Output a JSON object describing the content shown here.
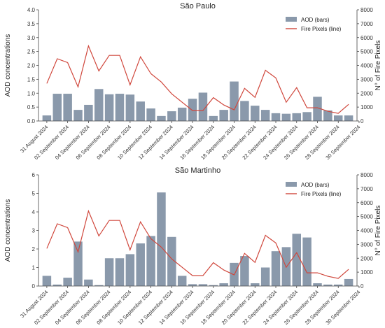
{
  "chart_data": [
    {
      "type": "bar",
      "title": "São Paulo",
      "ylabel": "AOD concentrations",
      "ylabel_right": "N° of Fire Pixels",
      "ylim": [
        0,
        4.0
      ],
      "ylim_right": [
        0,
        8000
      ],
      "yticks": [
        "0.0",
        "0.5",
        "1.0",
        "1.5",
        "2.0",
        "2.5",
        "3.0",
        "3.5",
        "4.0"
      ],
      "yticks_right": [
        "0",
        "1000",
        "2000",
        "3000",
        "4000",
        "5000",
        "6000",
        "7000",
        "8000"
      ],
      "legend": {
        "bars": "AOD (bars)",
        "line": "Fire Pixels (line)",
        "position": "top-right"
      },
      "x": [
        "31 August 2024",
        "02 September 2024",
        "04 September 2024",
        "06 September 2024",
        "08 September 2024",
        "10 September 2024",
        "12 September 2024",
        "14 September 2024",
        "16 September 2024",
        "18 September 2024",
        "20 September 2024",
        "22 September 2024",
        "24 September 2024",
        "26 September 2024",
        "28 September 2024",
        "30 September 2024"
      ],
      "aod": [
        0.2,
        0.98,
        0.98,
        0.4,
        0.58,
        1.15,
        0.96,
        0.98,
        0.95,
        0.7,
        0.45,
        0.18,
        0.35,
        0.48,
        0.8,
        1.02,
        0.18,
        0.4,
        1.42,
        0.72,
        0.55,
        0.4,
        0.28,
        0.26,
        0.28,
        0.32,
        0.87,
        0.38,
        0.2,
        0.2
      ],
      "fire": [
        2700,
        4480,
        4200,
        2450,
        5400,
        3600,
        4720,
        4720,
        2600,
        4620,
        3400,
        2800,
        1950,
        1350,
        750,
        750,
        1680,
        1150,
        800,
        2350,
        1700,
        3650,
        3100,
        1350,
        2400,
        950,
        950,
        700,
        550,
        1200
      ]
    },
    {
      "type": "bar",
      "title": "São Martinho",
      "ylabel": "AOD concentrations",
      "ylabel_right": "N° of Fire Pixels",
      "ylim": [
        0,
        6
      ],
      "ylim_right": [
        0,
        8000
      ],
      "yticks": [
        "0",
        "1",
        "2",
        "3",
        "4",
        "5",
        "6"
      ],
      "yticks_right": [
        "0",
        "1000",
        "2000",
        "3000",
        "4000",
        "5000",
        "6000",
        "7000",
        "8000"
      ],
      "legend": {
        "bars": "AOD (bars)",
        "line": "Fire Pixels (line)",
        "position": "top-right"
      },
      "x": [
        "31 August 2024",
        "02 September 2024",
        "04 September 2024",
        "06 September 2024",
        "08 September 2024",
        "10 September 2024",
        "12 September 2024",
        "14 September 2024",
        "16 September 2024",
        "18 September 2024",
        "20 September 2024",
        "22 September 2024",
        "24 September 2024",
        "26 September 2024",
        "28 September 2024",
        "30 September 2024"
      ],
      "aod": [
        0.55,
        0.08,
        0.45,
        2.4,
        0.35,
        0.05,
        1.5,
        1.5,
        1.72,
        2.3,
        2.7,
        5.05,
        2.65,
        0.55,
        0.1,
        0.1,
        0.05,
        0.15,
        1.25,
        1.62,
        0.15,
        1.0,
        1.88,
        2.1,
        2.82,
        2.62,
        0.15,
        0.08,
        0.08,
        0.38
      ],
      "fire": [
        2700,
        4480,
        4200,
        2450,
        5400,
        3600,
        4720,
        4720,
        2600,
        4620,
        3400,
        2800,
        1950,
        1350,
        750,
        750,
        1680,
        1150,
        800,
        2350,
        1700,
        3650,
        3100,
        1350,
        2400,
        950,
        950,
        700,
        550,
        1200
      ]
    }
  ],
  "colors": {
    "bar": "#8a99ab",
    "line": "#d0473c"
  }
}
